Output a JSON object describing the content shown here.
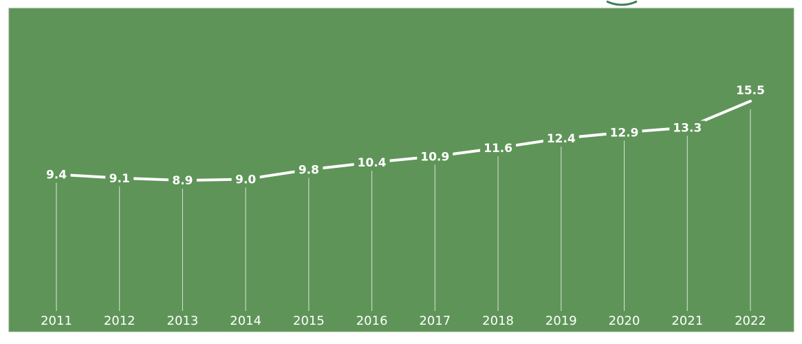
{
  "colors": {
    "panel": "#5f9459",
    "panel_border": "#88a787",
    "line": "#ffffff",
    "drop_line": "#d9e6d6",
    "label_bg": "#5f9459",
    "badge_edge": "#3f7e53"
  },
  "chart_data": {
    "type": "line",
    "categories": [
      "2011",
      "2012",
      "2013",
      "2014",
      "2015",
      "2016",
      "2017",
      "2018",
      "2019",
      "2020",
      "2021",
      "2022"
    ],
    "series": [
      {
        "values": [
          9.4,
          9.1,
          8.9,
          9.0,
          9.8,
          10.4,
          10.9,
          11.6,
          12.4,
          12.9,
          13.3,
          15.5
        ],
        "labels": [
          "9.4",
          "9.1",
          "8.9",
          "9.0",
          "9.8",
          "10.4",
          "10.9",
          "11.6",
          "12.4",
          "12.9",
          "13.3",
          "15.5"
        ]
      }
    ],
    "title": "",
    "xlabel": "",
    "ylabel": "",
    "grid": false,
    "legend": "none"
  }
}
